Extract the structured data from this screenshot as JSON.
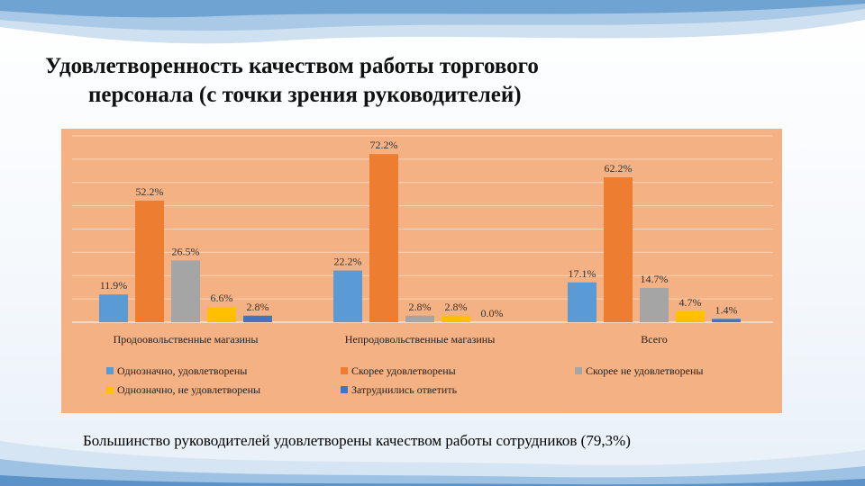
{
  "title": {
    "line1": "Удовлетворенность качеством работы торгового",
    "line2": "персонала (с точки зрения руководителей)"
  },
  "caption": "Большинство руководителей удовлетворены качеством работы сотрудников (79,3%)",
  "chart_data": {
    "type": "bar",
    "title": "",
    "xlabel": "",
    "ylabel": "",
    "ylim": [
      0,
      80
    ],
    "grid": true,
    "legend": "bottom",
    "categories": [
      "Продоовольственные магазины",
      "Непродовольственные магазины",
      "Всего"
    ],
    "series": [
      {
        "name": "Однозначно, удовлетворены",
        "color": "#5b9bd5",
        "values": [
          11.9,
          22.2,
          17.1
        ],
        "labels": [
          "11.9%",
          "22.2%",
          "17.1%"
        ]
      },
      {
        "name": "Скорее удовлетворены",
        "color": "#ed7d31",
        "values": [
          52.2,
          72.2,
          62.2
        ],
        "labels": [
          "52.2%",
          "72.2%",
          "62.2%"
        ]
      },
      {
        "name": "Скорее не удовлетворены",
        "color": "#a5a5a5",
        "values": [
          26.5,
          2.8,
          14.7
        ],
        "labels": [
          "26.5%",
          "2.8%",
          "14.7%"
        ]
      },
      {
        "name": "Однозначно, не удовлетворены",
        "color": "#ffc000",
        "values": [
          6.6,
          2.8,
          4.7
        ],
        "labels": [
          "6.6%",
          "2.8%",
          "4.7%"
        ]
      },
      {
        "name": "Затруднились ответить",
        "color": "#4472c4",
        "values": [
          2.8,
          0.0,
          1.4
        ],
        "labels": [
          "2.8%",
          "0.0%",
          "1.4%"
        ]
      }
    ]
  }
}
